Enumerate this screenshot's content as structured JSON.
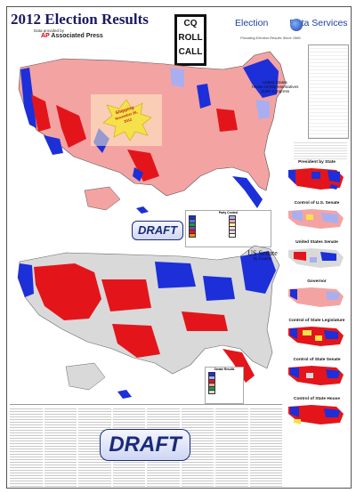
{
  "header": {
    "title": "2012 Election Results",
    "subnote": "Data provided by",
    "ap_mark": "AP",
    "ap_label": "Associated Press",
    "cq_lines": [
      "CQ",
      "ROLL",
      "CALL"
    ],
    "eds_left": "Election",
    "eds_right": "Data Services",
    "eds_tagline": "Providing Election Results Since 1986"
  },
  "house_map": {
    "title_lines": [
      "United States",
      "House of Representatives",
      "113th Congress"
    ],
    "sticker_lines": [
      "Shipping",
      "November 26,",
      "2012"
    ],
    "draft_label": "DRAFT",
    "legend_title": "Party Control"
  },
  "senate_map": {
    "title": "US Senate",
    "subtitle": "by County",
    "legend_title": "Senate Results"
  },
  "side_maps": [
    {
      "label": "President by State"
    },
    {
      "label": "Control of U.S. Senate"
    },
    {
      "label": "United States Senate"
    },
    {
      "label": "Governor"
    },
    {
      "label": "Control of State Legislature"
    },
    {
      "label": "Control of State Senate"
    },
    {
      "label": "Control of State House"
    }
  ],
  "footer": {
    "draft_label": "DRAFT"
  },
  "colors": {
    "republican": "#e3151b",
    "republican_light": "#f4a3a3",
    "democrat": "#1c2fd9",
    "democrat_light": "#a9aef0",
    "no_election": "#d9d9d9",
    "sticker": "#f5e14a"
  }
}
